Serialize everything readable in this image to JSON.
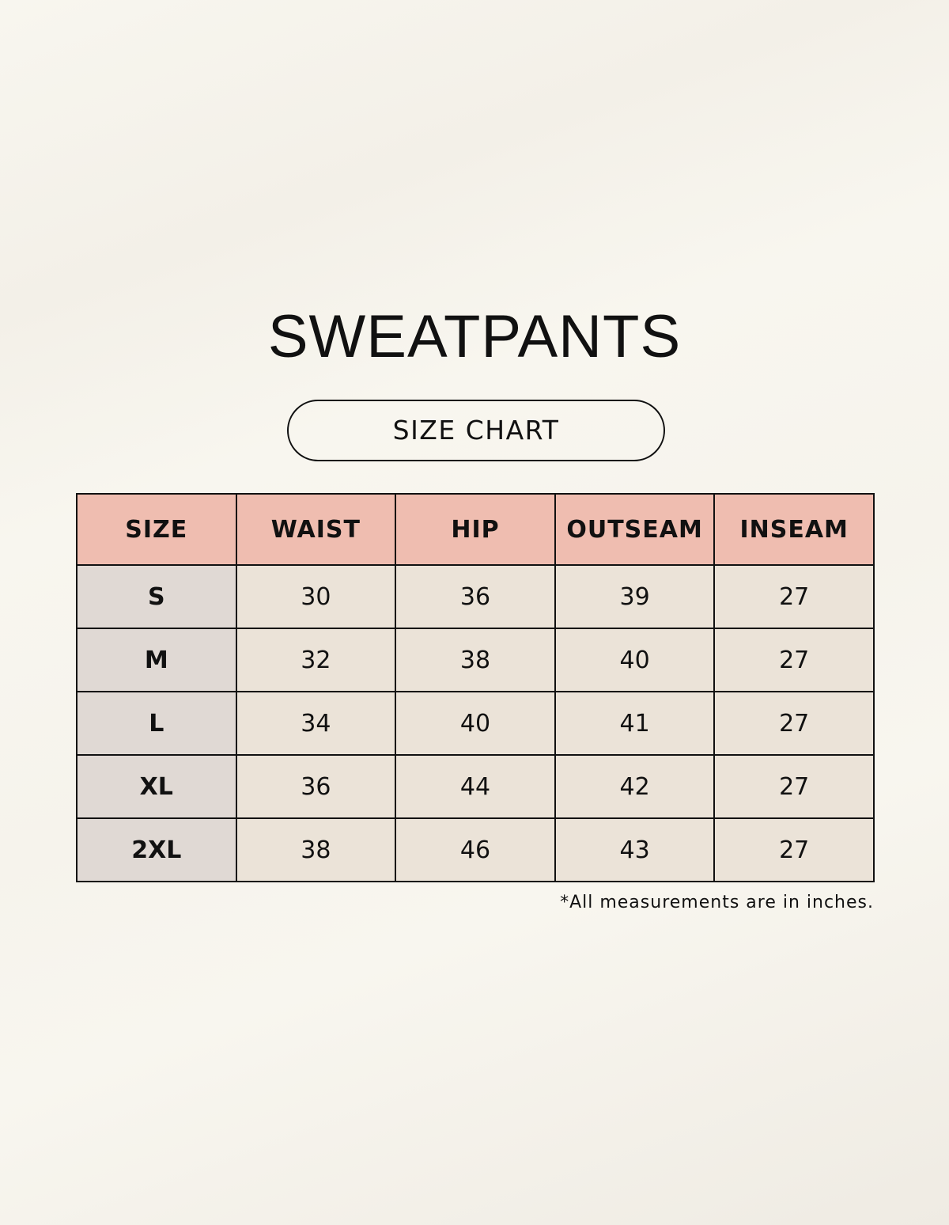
{
  "header": {
    "title": "SWEATPANTS",
    "subtitle": "SIZE CHART"
  },
  "table": {
    "columns": [
      "SIZE",
      "WAIST",
      "HIP",
      "OUTSEAM",
      "INSEAM"
    ],
    "rows": [
      [
        "S",
        30,
        36,
        39,
        27
      ],
      [
        "M",
        32,
        38,
        40,
        27
      ],
      [
        "L",
        34,
        40,
        41,
        27
      ],
      [
        "XL",
        36,
        44,
        42,
        27
      ],
      [
        "2XL",
        38,
        46,
        43,
        27
      ]
    ]
  },
  "footnote": "*All measurements are in inches."
}
